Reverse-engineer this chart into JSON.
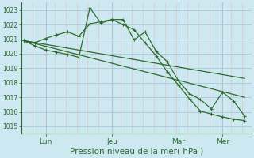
{
  "bg_color": "#cde8f0",
  "grid_major_color": "#a8c8d8",
  "grid_minor_color": "#dcc8cc",
  "line_color": "#2d6b2d",
  "ylim": [
    1014.5,
    1023.5
  ],
  "xlim": [
    -0.1,
    10.3
  ],
  "xlabel": "Pression niveau de la mer( hPa )",
  "xtick_labels": [
    "Lun",
    "Jeu",
    "Mar",
    "Mer"
  ],
  "xtick_pos": [
    1,
    4,
    7,
    9
  ],
  "yticks": [
    1015,
    1016,
    1017,
    1018,
    1019,
    1020,
    1021,
    1022,
    1023
  ],
  "line1_x": [
    0,
    0.5,
    1.0,
    1.5,
    2.0,
    2.5,
    3.0,
    3.5,
    4.0,
    4.5,
    5.0,
    5.5,
    6.0,
    6.5,
    7.0,
    7.5,
    8.0,
    8.5,
    9.0,
    9.5,
    10.0
  ],
  "line1_y": [
    1020.9,
    1020.75,
    1021.05,
    1021.3,
    1021.5,
    1021.2,
    1022.05,
    1022.2,
    1022.35,
    1022.0,
    1021.65,
    1020.75,
    1019.85,
    1018.75,
    1017.85,
    1016.9,
    1016.05,
    1015.85,
    1015.65,
    1015.5,
    1015.4
  ],
  "line2_x": [
    0,
    0.5,
    1.0,
    1.5,
    2.0,
    2.5,
    3.0,
    3.5,
    4.0,
    4.5,
    5.0,
    5.5,
    6.0,
    6.5,
    7.0,
    7.5,
    8.0,
    8.5,
    9.0,
    9.5,
    10.0
  ],
  "line2_y": [
    1020.9,
    1020.55,
    1020.25,
    1020.1,
    1019.95,
    1019.75,
    1023.15,
    1022.1,
    1022.35,
    1022.35,
    1020.95,
    1021.5,
    1020.15,
    1019.45,
    1018.15,
    1017.25,
    1016.85,
    1016.2,
    1017.35,
    1016.75,
    1015.7
  ],
  "line3_x": [
    0,
    10.0
  ],
  "line3_y": [
    1020.9,
    1018.3
  ],
  "line4_x": [
    0,
    10.0
  ],
  "line4_y": [
    1020.9,
    1017.0
  ]
}
